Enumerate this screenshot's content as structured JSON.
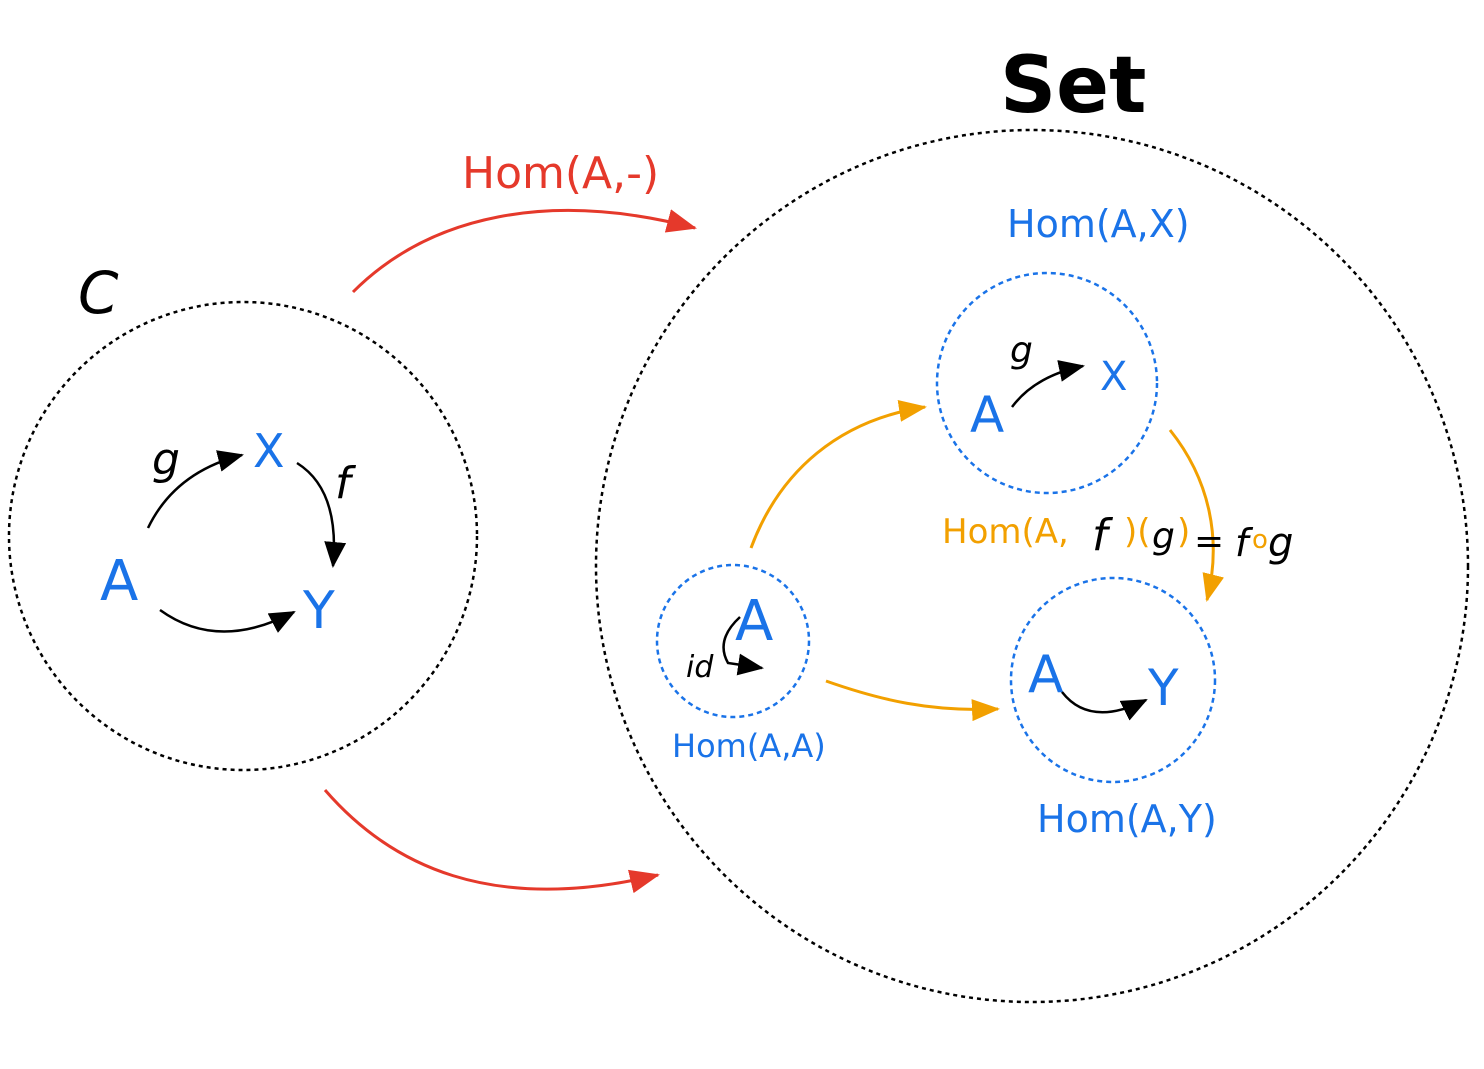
{
  "labels": {
    "category_c": "C",
    "category_set": "Set",
    "functor": "Hom(A,-)",
    "hom_ax": "Hom(A,X)",
    "hom_aa": "Hom(A,A)",
    "hom_ay": "Hom(A,Y)",
    "hom_af_g_prefix": "Hom(A,",
    "hom_af_f": "f",
    "hom_af_g_mid": ")(",
    "hom_af_g_arg": "g",
    "hom_af_g_close": ")",
    "equals_fog_eq": "=",
    "equals_fog_f": "f",
    "equals_fog_o": "o",
    "equals_fog_g": "g"
  },
  "objects_c": {
    "a": "A",
    "x": "X",
    "y": "Y",
    "g": "g",
    "f": "f"
  },
  "set_elements": {
    "ax_a": "A",
    "ax_x": "X",
    "ax_g": "g",
    "aa_a": "A",
    "aa_id": "id",
    "ay_a": "A",
    "ay_y": "Y"
  },
  "colors": {
    "functor_arrow": "#e5392b",
    "map_arrow": "#f2a000",
    "object_text": "#1a73e8",
    "dashed_black": "#000000",
    "dashed_blue": "#1a73e8"
  }
}
